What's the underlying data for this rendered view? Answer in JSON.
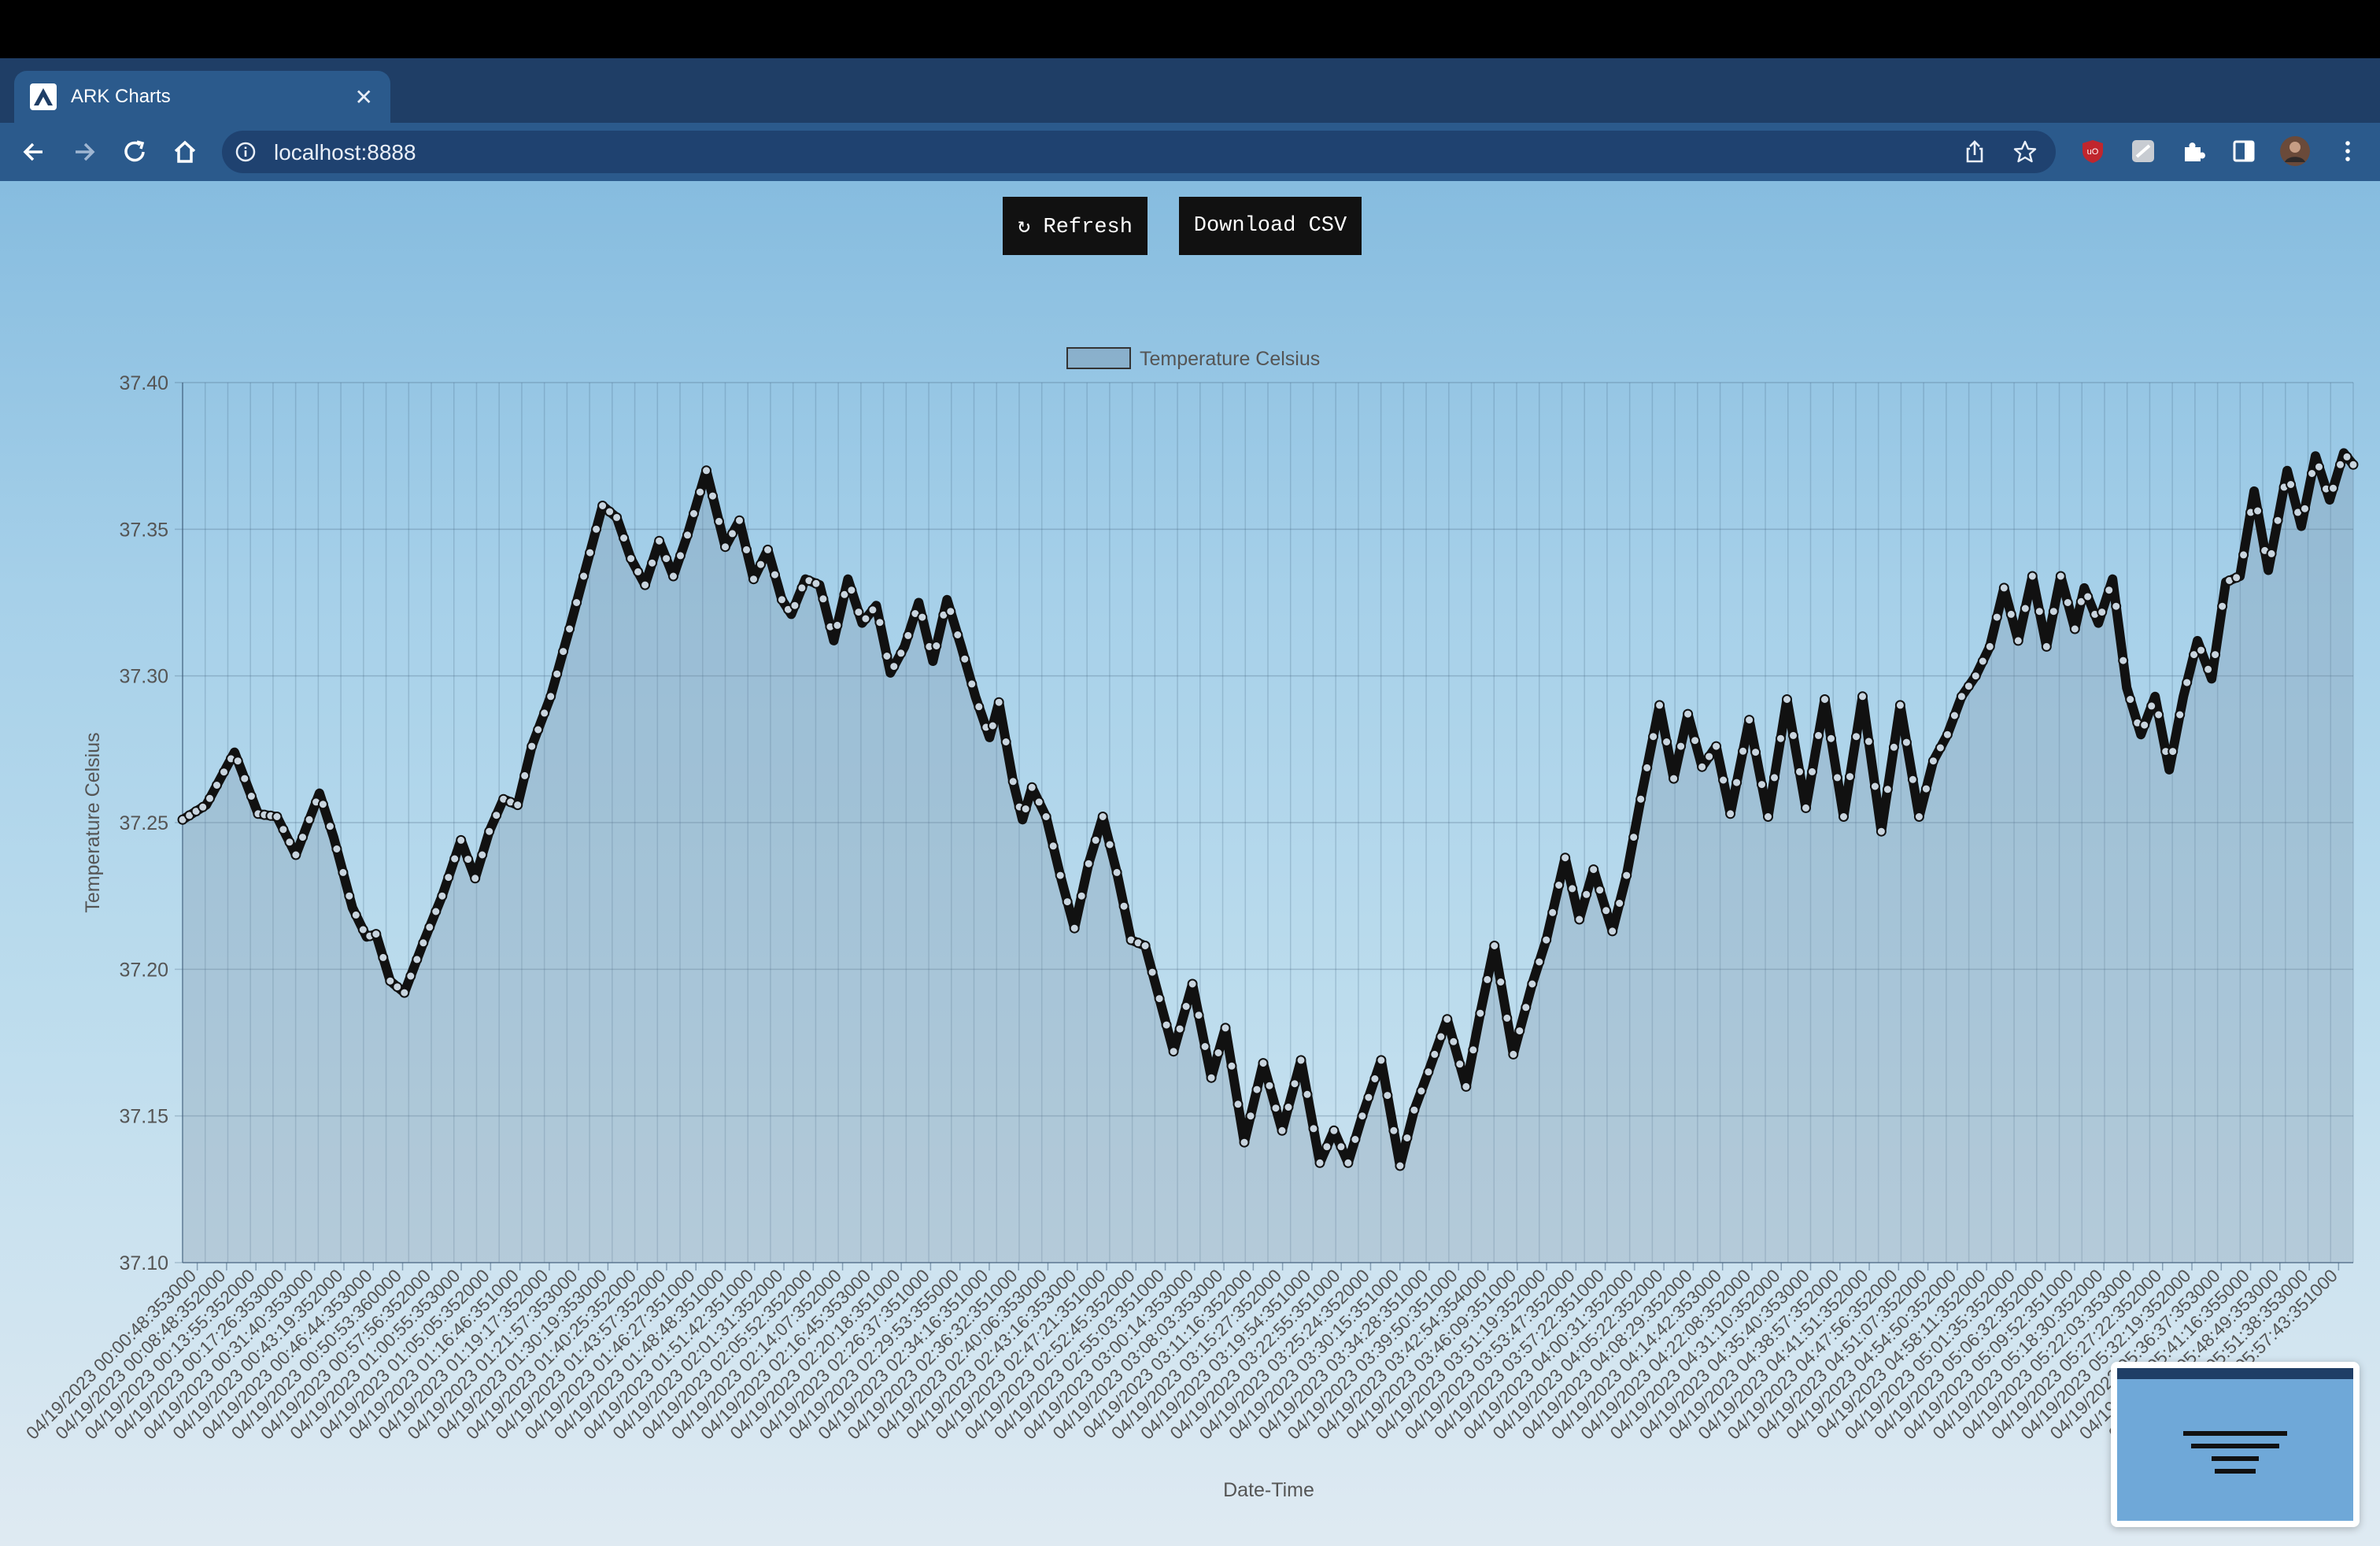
{
  "browser": {
    "tab_title": "ARK Charts",
    "url": "localhost:8888"
  },
  "page": {
    "refresh_label": "↻ Refresh",
    "download_label": "Download CSV"
  },
  "chart_data": {
    "type": "line",
    "fill": true,
    "legend": "Temperature Celsius",
    "legend_position": "top-center",
    "xlabel": "Date-Time",
    "ylabel": "Temperature Celsius",
    "ylim": [
      37.1,
      37.4
    ],
    "yticks": [
      "37.40",
      "37.35",
      "37.30",
      "37.25",
      "37.20",
      "37.15",
      "37.10"
    ],
    "grid": true,
    "line_color": "#111111",
    "fill_color": "rgba(120,140,160,0.28)",
    "x_tick_labels": [
      "04/19/2023 00:00:48:353000",
      "04/19/2023 00:08:48:352000",
      "04/19/2023 00:13:55:352000",
      "04/19/2023 00:17:26:353000",
      "04/19/2023 00:31:40:353000",
      "04/19/2023 00:43:19:352000",
      "04/19/2023 00:46:44:353000",
      "04/19/2023 00:50:53:360000",
      "04/19/2023 00:57:56:352000",
      "04/19/2023 01:00:55:353000",
      "04/19/2023 01:05:05:352000",
      "04/19/2023 01:16:46:351000",
      "04/19/2023 01:19:17:352000",
      "04/19/2023 01:21:57:353000",
      "04/19/2023 01:30:19:353000",
      "04/19/2023 01:40:25:352000",
      "04/19/2023 01:43:57:352000",
      "04/19/2023 01:46:27:351000",
      "04/19/2023 01:48:48:351000",
      "04/19/2023 01:51:42:351000",
      "04/19/2023 02:01:31:352000",
      "04/19/2023 02:05:52:352000",
      "04/19/2023 02:14:07:352000",
      "04/19/2023 02:16:45:353000",
      "04/19/2023 02:20:18:351000",
      "04/19/2023 02:26:37:351000",
      "04/19/2023 02:29:53:355000",
      "04/19/2023 02:34:16:351000",
      "04/19/2023 02:36:32:351000",
      "04/19/2023 02:40:06:353000",
      "04/19/2023 02:43:16:353000",
      "04/19/2023 02:47:21:351000",
      "04/19/2023 02:52:45:352000",
      "04/19/2023 02:55:03:351000",
      "04/19/2023 03:00:14:353000",
      "04/19/2023 03:08:03:353000",
      "04/19/2023 03:11:16:352000",
      "04/19/2023 03:15:27:352000",
      "04/19/2023 03:19:54:351000",
      "04/19/2023 03:22:55:351000",
      "04/19/2023 03:25:24:352000",
      "04/19/2023 03:30:15:351000",
      "04/19/2023 03:34:28:351000",
      "04/19/2023 03:39:50:351000",
      "04/19/2023 03:42:54:354000",
      "04/19/2023 03:46:09:351000",
      "04/19/2023 03:51:19:352000",
      "04/19/2023 03:53:47:352000",
      "04/19/2023 03:57:22:351000",
      "04/19/2023 04:00:31:352000",
      "04/19/2023 04:05:22:352000",
      "04/19/2023 04:08:29:352000",
      "04/19/2023 04:14:42:353000",
      "04/19/2023 04:22:08:352000",
      "04/19/2023 04:31:10:352000",
      "04/19/2023 04:35:40:353000",
      "04/19/2023 04:38:57:352000",
      "04/19/2023 04:41:51:352000",
      "04/19/2023 04:47:56:352000",
      "04/19/2023 04:51:07:352000",
      "04/19/2023 04:54:50:352000",
      "04/19/2023 04:58:11:352000",
      "04/19/2023 05:01:35:352000",
      "04/19/2023 05:06:32:352000",
      "04/19/2023 05:09:52:351000",
      "04/19/2023 05:18:30:352000",
      "04/19/2023 05:22:03:353000",
      "04/19/2023 05:27:22:352000",
      "04/19/2023 05:32:19:352000",
      "04/19/2023 05:36:37:353000",
      "04/19/2023 05:41:16:355000",
      "04/19/2023 05:48:49:353000",
      "04/19/2023 05:51:38:353000",
      "04/19/2023 05:57:43:351000"
    ],
    "anchors": [
      [
        0,
        37.251
      ],
      [
        0.5,
        37.256
      ],
      [
        1.1,
        37.274
      ],
      [
        1.6,
        37.253
      ],
      [
        2.0,
        37.252
      ],
      [
        2.4,
        37.239
      ],
      [
        2.9,
        37.26
      ],
      [
        3.2,
        37.245
      ],
      [
        3.6,
        37.221
      ],
      [
        3.9,
        37.211
      ],
      [
        4.1,
        37.212
      ],
      [
        4.4,
        37.196
      ],
      [
        4.7,
        37.192
      ],
      [
        5.1,
        37.209
      ],
      [
        5.5,
        37.225
      ],
      [
        5.9,
        37.244
      ],
      [
        6.2,
        37.231
      ],
      [
        6.5,
        37.247
      ],
      [
        6.8,
        37.258
      ],
      [
        7.1,
        37.256
      ],
      [
        7.4,
        37.276
      ],
      [
        7.8,
        37.293
      ],
      [
        8.2,
        37.316
      ],
      [
        8.5,
        37.334
      ],
      [
        8.9,
        37.358
      ],
      [
        9.2,
        37.354
      ],
      [
        9.5,
        37.34
      ],
      [
        9.8,
        37.331
      ],
      [
        10.1,
        37.346
      ],
      [
        10.4,
        37.334
      ],
      [
        10.7,
        37.348
      ],
      [
        11.1,
        37.37
      ],
      [
        11.5,
        37.344
      ],
      [
        11.8,
        37.353
      ],
      [
        12.1,
        37.333
      ],
      [
        12.4,
        37.343
      ],
      [
        12.7,
        37.326
      ],
      [
        12.9,
        37.321
      ],
      [
        13.2,
        37.333
      ],
      [
        13.5,
        37.331
      ],
      [
        13.8,
        37.312
      ],
      [
        14.1,
        37.333
      ],
      [
        14.4,
        37.318
      ],
      [
        14.7,
        37.324
      ],
      [
        15.0,
        37.301
      ],
      [
        15.3,
        37.31
      ],
      [
        15.6,
        37.325
      ],
      [
        15.9,
        37.305
      ],
      [
        16.2,
        37.326
      ],
      [
        16.5,
        37.31
      ],
      [
        16.8,
        37.293
      ],
      [
        17.1,
        37.279
      ],
      [
        17.3,
        37.291
      ],
      [
        17.6,
        37.264
      ],
      [
        17.8,
        37.251
      ],
      [
        18.0,
        37.262
      ],
      [
        18.3,
        37.252
      ],
      [
        18.6,
        37.232
      ],
      [
        18.9,
        37.214
      ],
      [
        19.2,
        37.236
      ],
      [
        19.5,
        37.252
      ],
      [
        19.8,
        37.233
      ],
      [
        20.1,
        37.21
      ],
      [
        20.4,
        37.208
      ],
      [
        20.7,
        37.19
      ],
      [
        21.0,
        37.172
      ],
      [
        21.4,
        37.195
      ],
      [
        21.8,
        37.163
      ],
      [
        22.1,
        37.18
      ],
      [
        22.5,
        37.141
      ],
      [
        22.9,
        37.168
      ],
      [
        23.3,
        37.145
      ],
      [
        23.7,
        37.169
      ],
      [
        24.1,
        37.134
      ],
      [
        24.4,
        37.145
      ],
      [
        24.7,
        37.134
      ],
      [
        25.0,
        37.15
      ],
      [
        25.4,
        37.169
      ],
      [
        25.8,
        37.133
      ],
      [
        26.1,
        37.152
      ],
      [
        26.4,
        37.165
      ],
      [
        26.8,
        37.183
      ],
      [
        27.2,
        37.16
      ],
      [
        27.5,
        37.185
      ],
      [
        27.8,
        37.208
      ],
      [
        28.2,
        37.171
      ],
      [
        28.6,
        37.195
      ],
      [
        28.9,
        37.21
      ],
      [
        29.3,
        37.238
      ],
      [
        29.6,
        37.217
      ],
      [
        29.9,
        37.234
      ],
      [
        30.3,
        37.213
      ],
      [
        30.6,
        37.232
      ],
      [
        30.9,
        37.258
      ],
      [
        31.3,
        37.29
      ],
      [
        31.6,
        37.265
      ],
      [
        31.9,
        37.287
      ],
      [
        32.2,
        37.269
      ],
      [
        32.5,
        37.276
      ],
      [
        32.8,
        37.253
      ],
      [
        33.2,
        37.285
      ],
      [
        33.6,
        37.252
      ],
      [
        34.0,
        37.292
      ],
      [
        34.4,
        37.255
      ],
      [
        34.8,
        37.292
      ],
      [
        35.2,
        37.252
      ],
      [
        35.6,
        37.293
      ],
      [
        36.0,
        37.247
      ],
      [
        36.4,
        37.29
      ],
      [
        36.8,
        37.252
      ],
      [
        37.1,
        37.271
      ],
      [
        37.4,
        37.28
      ],
      [
        37.7,
        37.293
      ],
      [
        38.0,
        37.3
      ],
      [
        38.3,
        37.31
      ],
      [
        38.6,
        37.33
      ],
      [
        38.9,
        37.312
      ],
      [
        39.2,
        37.334
      ],
      [
        39.5,
        37.31
      ],
      [
        39.8,
        37.334
      ],
      [
        40.1,
        37.316
      ],
      [
        40.3,
        37.33
      ],
      [
        40.6,
        37.318
      ],
      [
        40.9,
        37.333
      ],
      [
        41.2,
        37.296
      ],
      [
        41.5,
        37.28
      ],
      [
        41.8,
        37.293
      ],
      [
        42.1,
        37.268
      ],
      [
        42.4,
        37.293
      ],
      [
        42.7,
        37.312
      ],
      [
        43.0,
        37.299
      ],
      [
        43.3,
        37.332
      ],
      [
        43.6,
        37.334
      ],
      [
        43.9,
        37.363
      ],
      [
        44.2,
        37.336
      ],
      [
        44.6,
        37.37
      ],
      [
        44.9,
        37.351
      ],
      [
        45.2,
        37.375
      ],
      [
        45.5,
        37.36
      ],
      [
        45.8,
        37.376
      ],
      [
        46.0,
        37.372
      ]
    ]
  }
}
